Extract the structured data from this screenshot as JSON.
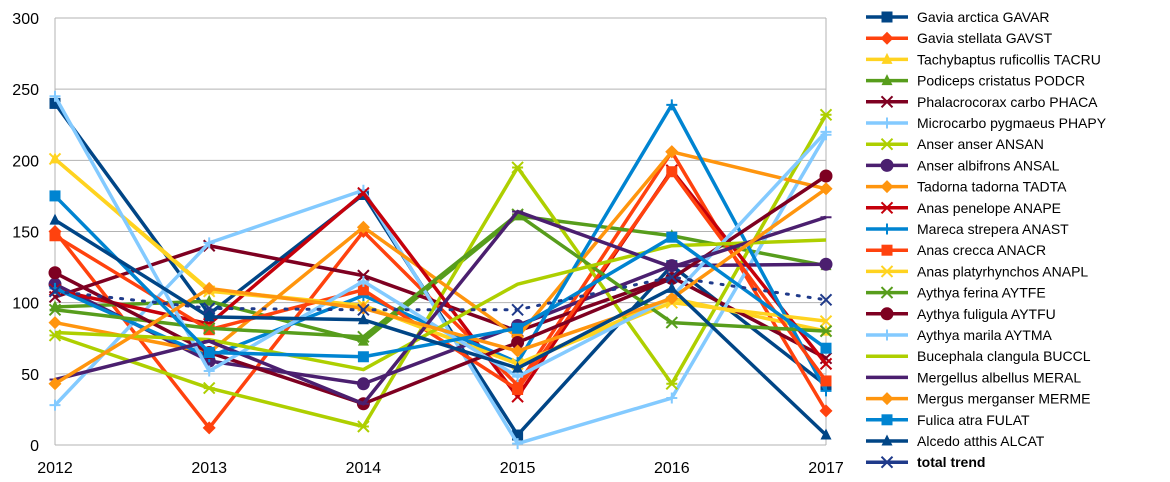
{
  "chart_data": {
    "type": "line",
    "x": [
      "2012",
      "2013",
      "2014",
      "2015",
      "2016",
      "2017"
    ],
    "ylim": [
      0,
      300
    ],
    "yticks": [
      0,
      50,
      100,
      150,
      200,
      250,
      300
    ],
    "grid": "horizontal",
    "legend_position": "right",
    "series": [
      {
        "name": "Gavia arctica GAVAR",
        "color": "#004586",
        "marker": "square",
        "values": [
          240,
          92,
          176,
          7,
          126,
          42
        ]
      },
      {
        "name": "Gavia stellata GAVST",
        "color": "#ff420e",
        "marker": "diamond",
        "values": [
          150,
          12,
          150,
          42,
          206,
          24
        ]
      },
      {
        "name": "Tachybaptus ruficollis TACRU",
        "color": "#ffd320",
        "marker": "triangle",
        "values": [
          201,
          109,
          98,
          57,
          103,
          80
        ]
      },
      {
        "name": "Podiceps cristatus PODCR",
        "color": "#579d1c",
        "marker": "triangle",
        "values": [
          97,
          101,
          73,
          161,
          147,
          126
        ]
      },
      {
        "name": "Phalacrocorax carbo PHACA",
        "color": "#7e0021",
        "marker": "x",
        "values": [
          104,
          140,
          119,
          80,
          118,
          61
        ]
      },
      {
        "name": "Microcarbo pygmaeus PHAPY",
        "color": "#83caff",
        "marker": "plus",
        "values": [
          28,
          142,
          179,
          1,
          33,
          218
        ]
      },
      {
        "name": "Anser anser ANSAN",
        "color": "#aecf00",
        "marker": "asterisk",
        "values": [
          77,
          40,
          13,
          195,
          43,
          232
        ]
      },
      {
        "name": "Anser albifrons ANSAL",
        "color": "#4b1f6f",
        "marker": "circle",
        "values": [
          113,
          59,
          43,
          84,
          126,
          127
        ]
      },
      {
        "name": "Tadorna tadorna TADTA",
        "color": "#ff950e",
        "marker": "diamond",
        "values": [
          86,
          65,
          153,
          76,
          206,
          180
        ]
      },
      {
        "name": "Anas penelope ANAPE",
        "color": "#c5000b",
        "marker": "x",
        "values": [
          109,
          85,
          177,
          34,
          193,
          57
        ]
      },
      {
        "name": "Mareca strepera ANAST",
        "color": "#0084d1",
        "marker": "plus",
        "values": [
          110,
          62,
          105,
          58,
          239,
          38
        ]
      },
      {
        "name": "Anas crecca ANACR",
        "color": "#ff420e",
        "marker": "square",
        "values": [
          147,
          81,
          109,
          39,
          192,
          45
        ]
      },
      {
        "name": "Anas platyrhynchos ANAPL",
        "color": "#ffd320",
        "marker": "x",
        "values": [
          201,
          108,
          98,
          57,
          100,
          87
        ]
      },
      {
        "name": "Aythya ferina AYTFE",
        "color": "#579d1c",
        "marker": "asterisk",
        "values": [
          95,
          82,
          76,
          162,
          86,
          80
        ]
      },
      {
        "name": "Aythya fuligula AYTFU",
        "color": "#7e0021",
        "marker": "circle",
        "values": [
          121,
          65,
          29,
          72,
          117,
          189
        ]
      },
      {
        "name": "Aythya marila AYTMA",
        "color": "#83caff",
        "marker": "plus",
        "values": [
          245,
          52,
          115,
          48,
          104,
          220
        ]
      },
      {
        "name": "Bucephala clangula BUCCL",
        "color": "#aecf00",
        "marker": "none",
        "values": [
          79,
          74,
          53,
          113,
          140,
          144
        ]
      },
      {
        "name": "Mergellus albellus MERAL",
        "color": "#4b1f6f",
        "marker": "dash",
        "values": [
          46,
          73,
          29,
          164,
          125,
          160
        ]
      },
      {
        "name": "Mergus merganser MERME",
        "color": "#ff950e",
        "marker": "diamond",
        "values": [
          43,
          110,
          96,
          66,
          103,
          180
        ]
      },
      {
        "name": "Fulica atra FULAT",
        "color": "#0084d1",
        "marker": "square",
        "values": [
          175,
          65,
          62,
          82,
          146,
          68
        ]
      },
      {
        "name": "Alcedo atthis ALCAT",
        "color": "#004586",
        "marker": "triangle",
        "values": [
          158,
          90,
          88,
          54,
          110,
          7
        ]
      },
      {
        "name": "total trend",
        "color": "#1f3a8a",
        "marker": "x",
        "bold": true,
        "trend": true,
        "values": [
          108,
          96,
          95,
          95,
          118,
          102
        ]
      }
    ]
  }
}
